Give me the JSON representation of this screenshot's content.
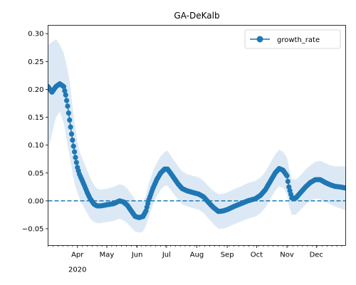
{
  "chart_data": {
    "type": "line",
    "title": "GA-DeKalb",
    "xlabel": "",
    "ylabel": "",
    "xlim": [
      "2020-03-02",
      "2020-12-31"
    ],
    "ylim": [
      -0.08,
      0.315
    ],
    "x_tick_labels": [
      "Apr",
      "May",
      "Jun",
      "Jul",
      "Aug",
      "Sep",
      "Oct",
      "Nov",
      "Dec"
    ],
    "x_tick_dates": [
      "2020-04-01",
      "2020-05-01",
      "2020-06-01",
      "2020-07-01",
      "2020-08-01",
      "2020-09-01",
      "2020-10-01",
      "2020-11-01",
      "2020-12-01"
    ],
    "x_year_label": "2020",
    "y_ticks": [
      -0.05,
      0.0,
      0.05,
      0.1,
      0.15,
      0.2,
      0.25,
      0.3
    ],
    "y_tick_labels": [
      "−0.05",
      "0.00",
      "0.05",
      "0.10",
      "0.15",
      "0.20",
      "0.25",
      "0.30"
    ],
    "reference_line": {
      "y": 0.0,
      "style": "dashed",
      "color": "#1f77b4"
    },
    "legend": {
      "position": "top-right",
      "entries": [
        "growth_rate"
      ]
    },
    "grid": false,
    "colors": {
      "series": "#1f77b4",
      "band": "#dce9f5"
    },
    "series": [
      {
        "name": "growth_rate",
        "marker": "circle",
        "x": [
          "2020-03-02",
          "2020-03-06",
          "2020-03-10",
          "2020-03-14",
          "2020-03-18",
          "2020-03-20",
          "2020-03-22",
          "2020-03-24",
          "2020-03-26",
          "2020-03-28",
          "2020-03-30",
          "2020-04-01",
          "2020-04-03",
          "2020-04-05",
          "2020-04-08",
          "2020-04-11",
          "2020-04-14",
          "2020-04-18",
          "2020-04-21",
          "2020-04-25",
          "2020-05-01",
          "2020-05-08",
          "2020-05-14",
          "2020-05-18",
          "2020-05-22",
          "2020-05-26",
          "2020-05-30",
          "2020-06-03",
          "2020-06-07",
          "2020-06-10",
          "2020-06-13",
          "2020-06-17",
          "2020-06-21",
          "2020-06-25",
          "2020-06-29",
          "2020-07-02",
          "2020-07-05",
          "2020-07-09",
          "2020-07-13",
          "2020-07-17",
          "2020-07-22",
          "2020-07-28",
          "2020-08-03",
          "2020-08-08",
          "2020-08-13",
          "2020-08-18",
          "2020-08-23",
          "2020-08-28",
          "2020-09-02",
          "2020-09-08",
          "2020-09-15",
          "2020-09-22",
          "2020-09-30",
          "2020-10-05",
          "2020-10-10",
          "2020-10-15",
          "2020-10-20",
          "2020-10-24",
          "2020-10-28",
          "2020-11-01",
          "2020-11-03",
          "2020-11-06",
          "2020-11-10",
          "2020-11-15",
          "2020-11-20",
          "2020-11-25",
          "2020-11-30",
          "2020-12-05",
          "2020-12-10",
          "2020-12-15",
          "2020-12-20",
          "2020-12-25",
          "2020-12-31"
        ],
        "y": [
          0.205,
          0.195,
          0.205,
          0.21,
          0.205,
          0.19,
          0.17,
          0.145,
          0.12,
          0.098,
          0.078,
          0.06,
          0.048,
          0.04,
          0.028,
          0.015,
          0.004,
          -0.006,
          -0.009,
          -0.009,
          -0.007,
          -0.005,
          0.0,
          -0.002,
          -0.008,
          -0.018,
          -0.028,
          -0.03,
          -0.028,
          -0.018,
          0.002,
          0.022,
          0.038,
          0.05,
          0.057,
          0.057,
          0.05,
          0.04,
          0.03,
          0.022,
          0.018,
          0.015,
          0.012,
          0.007,
          -0.003,
          -0.012,
          -0.019,
          -0.018,
          -0.015,
          -0.01,
          -0.005,
          0.0,
          0.004,
          0.01,
          0.02,
          0.035,
          0.05,
          0.058,
          0.055,
          0.045,
          0.025,
          0.005,
          0.005,
          0.015,
          0.025,
          0.033,
          0.038,
          0.038,
          0.033,
          0.029,
          0.026,
          0.025,
          0.023
        ],
        "band_lower": [
          0.09,
          0.12,
          0.15,
          0.16,
          0.14,
          0.12,
          0.1,
          0.08,
          0.06,
          0.04,
          0.025,
          0.015,
          0.005,
          -0.003,
          -0.013,
          -0.022,
          -0.032,
          -0.038,
          -0.04,
          -0.04,
          -0.038,
          -0.036,
          -0.032,
          -0.035,
          -0.04,
          -0.048,
          -0.055,
          -0.057,
          -0.055,
          -0.045,
          -0.028,
          -0.008,
          0.008,
          0.02,
          0.027,
          0.027,
          0.02,
          0.011,
          0.002,
          -0.006,
          -0.01,
          -0.013,
          -0.016,
          -0.022,
          -0.032,
          -0.042,
          -0.05,
          -0.05,
          -0.047,
          -0.042,
          -0.037,
          -0.032,
          -0.028,
          -0.022,
          -0.012,
          0.003,
          0.018,
          0.026,
          0.023,
          0.012,
          -0.008,
          -0.025,
          -0.025,
          -0.016,
          -0.007,
          0.0,
          0.004,
          0.003,
          -0.002,
          -0.006,
          -0.01,
          -0.013,
          -0.017
        ],
        "band_upper": [
          0.28,
          0.285,
          0.29,
          0.28,
          0.265,
          0.25,
          0.235,
          0.215,
          0.185,
          0.155,
          0.13,
          0.105,
          0.09,
          0.08,
          0.068,
          0.054,
          0.042,
          0.028,
          0.022,
          0.02,
          0.022,
          0.025,
          0.03,
          0.028,
          0.022,
          0.012,
          0.002,
          -0.002,
          0.0,
          0.01,
          0.032,
          0.052,
          0.068,
          0.08,
          0.088,
          0.09,
          0.082,
          0.072,
          0.062,
          0.053,
          0.048,
          0.045,
          0.042,
          0.036,
          0.026,
          0.018,
          0.012,
          0.013,
          0.016,
          0.021,
          0.026,
          0.032,
          0.036,
          0.042,
          0.052,
          0.068,
          0.083,
          0.092,
          0.088,
          0.078,
          0.06,
          0.04,
          0.038,
          0.046,
          0.056,
          0.064,
          0.07,
          0.072,
          0.068,
          0.064,
          0.062,
          0.062,
          0.062
        ]
      }
    ]
  }
}
